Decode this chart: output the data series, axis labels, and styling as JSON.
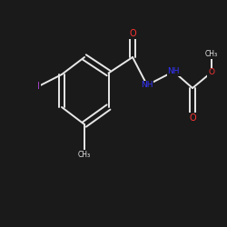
{
  "background_color": "#1a1a1a",
  "bond_color": "#e8e8e8",
  "atom_colors": {
    "O": "#ff3333",
    "N": "#3333ff",
    "I": "#aa44cc",
    "C": "#e8e8e8"
  },
  "figsize": [
    2.5,
    2.5
  ],
  "dpi": 100,
  "xlim": [
    0.0,
    1.0
  ],
  "ylim": [
    0.0,
    1.0
  ]
}
